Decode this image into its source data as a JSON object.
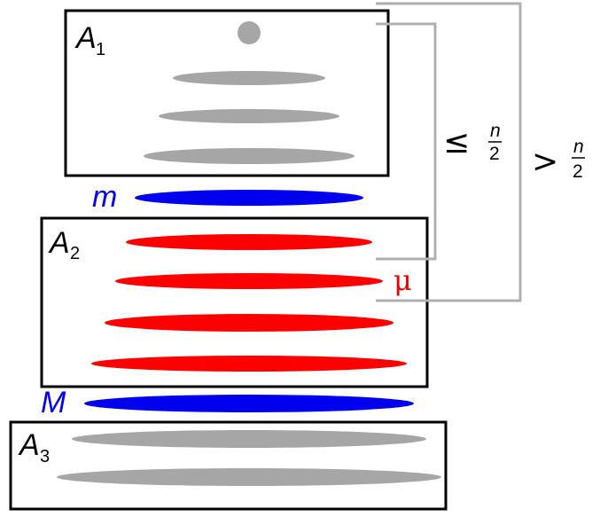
{
  "groups": {
    "a1": {
      "label": "A",
      "sub": "1"
    },
    "a2": {
      "label": "A",
      "sub": "2"
    },
    "a3": {
      "label": "A",
      "sub": "3"
    }
  },
  "markers": {
    "small_m": "m",
    "big_m": "M",
    "mu": "μ"
  },
  "brackets": {
    "inner": {
      "symbol": "≤",
      "numerator": "n",
      "denominator": "2"
    },
    "outer": {
      "symbol": ">",
      "numerator": "n",
      "denominator": "2"
    }
  },
  "colors": {
    "gray": "#a6a6a6",
    "red": "#ff0000",
    "blue": "#0000ee",
    "frame": "#000000",
    "bracket": "#b0b0b0"
  }
}
